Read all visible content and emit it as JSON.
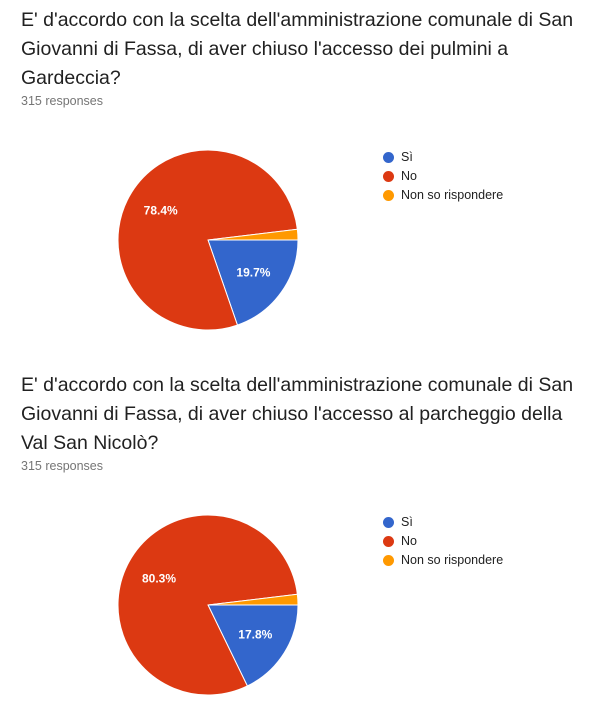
{
  "chart_data": [
    {
      "type": "pie",
      "title": "E' d'accordo con la scelta dell'amministrazione comunale di San Giovanni di Fassa, di aver chiuso l'accesso dei pulmini a Gardeccia?",
      "responses_label": "315 responses",
      "categories": [
        "Sì",
        "No",
        "Non so rispondere"
      ],
      "values": [
        19.7,
        78.4,
        1.9
      ],
      "labels": [
        "19.7%",
        "78.4%",
        ""
      ],
      "colors": [
        "#3366cc",
        "#dc3912",
        "#ff9900"
      ],
      "legend": "right"
    },
    {
      "type": "pie",
      "title": "E' d'accordo con la scelta dell'amministrazione comunale di San Giovanni di Fassa, di aver chiuso l'accesso al parcheggio della Val San Nicolò?",
      "responses_label": "315 responses",
      "categories": [
        "Sì",
        "No",
        "Non so rispondere"
      ],
      "values": [
        17.8,
        80.3,
        1.9
      ],
      "labels": [
        "17.8%",
        "80.3%",
        ""
      ],
      "colors": [
        "#3366cc",
        "#dc3912",
        "#ff9900"
      ],
      "legend": "right"
    }
  ]
}
